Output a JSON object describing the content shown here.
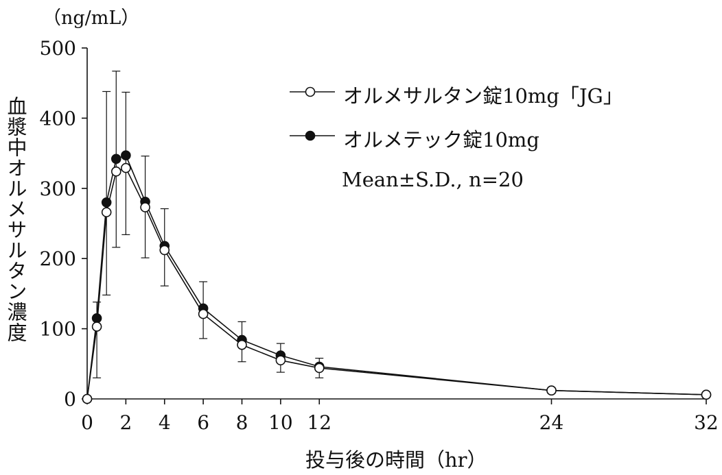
{
  "chart_data": {
    "type": "line",
    "title": "",
    "xlabel": "投与後の時間（hr）",
    "ylabel": "血漿中オルメサルタン濃度",
    "yunit": "（ng/mL）",
    "xlim": [
      0,
      32
    ],
    "ylim": [
      0,
      500
    ],
    "xticks": [
      0,
      2,
      4,
      6,
      8,
      10,
      12,
      24,
      32
    ],
    "yticks": [
      0,
      100,
      200,
      300,
      400,
      500
    ],
    "grid": false,
    "legend_position": "top-right",
    "note": "Mean±S.D., n=20",
    "series": [
      {
        "name": "オルメサルタン錠10mg「JG」",
        "marker": "open-circle",
        "x": [
          0,
          0.5,
          1,
          1.5,
          2,
          3,
          4,
          6,
          8,
          10,
          12,
          24,
          32
        ],
        "y": [
          0,
          103,
          266,
          324,
          329,
          273,
          212,
          121,
          77,
          55,
          44,
          12,
          6
        ],
        "error_plus": [
          0,
          35,
          172,
          143,
          108,
          73,
          59,
          46,
          33,
          24,
          14,
          0,
          0
        ],
        "error_minus": [
          0,
          73,
          118,
          108,
          95,
          72,
          51,
          35,
          24,
          17,
          14,
          0,
          0
        ]
      },
      {
        "name": "オルメテック錠10mg",
        "marker": "filled-circle",
        "x": [
          0,
          0.5,
          1,
          1.5,
          2,
          3,
          4,
          6,
          8,
          10,
          12,
          24,
          32
        ],
        "y": [
          0,
          115,
          280,
          342,
          347,
          281,
          218,
          129,
          84,
          62,
          46,
          12,
          6
        ],
        "error_plus": [
          0,
          0,
          0,
          0,
          0,
          0,
          0,
          0,
          0,
          0,
          0,
          0,
          0
        ],
        "error_minus": [
          0,
          0,
          0,
          0,
          0,
          0,
          0,
          0,
          0,
          0,
          0,
          0,
          0
        ]
      }
    ]
  }
}
